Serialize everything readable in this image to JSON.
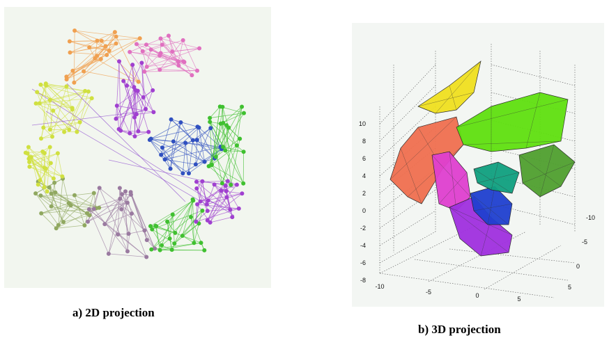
{
  "figure": {
    "panel_a": {
      "caption": "a) 2D projection",
      "colors": [
        "#f0a050",
        "#e070c0",
        "#d0e040",
        "#a040d0",
        "#3050c0",
        "#40c030",
        "#90a860",
        "#9a7aa0"
      ]
    },
    "panel_b": {
      "caption": "b) 3D projection",
      "z_ticks": [
        "10",
        "8",
        "6",
        "4",
        "2",
        "0",
        "-2",
        "-4",
        "-6",
        "-8"
      ],
      "x_ticks": [
        "-10",
        "-5",
        "0",
        "5"
      ],
      "y_ticks": [
        "-10",
        "-5",
        "0",
        "5"
      ],
      "colors": [
        "#f0e020",
        "#f07050",
        "#e040d0",
        "#a030e0",
        "#2040d0",
        "#10a080",
        "#60e010",
        "#50a030"
      ]
    }
  }
}
